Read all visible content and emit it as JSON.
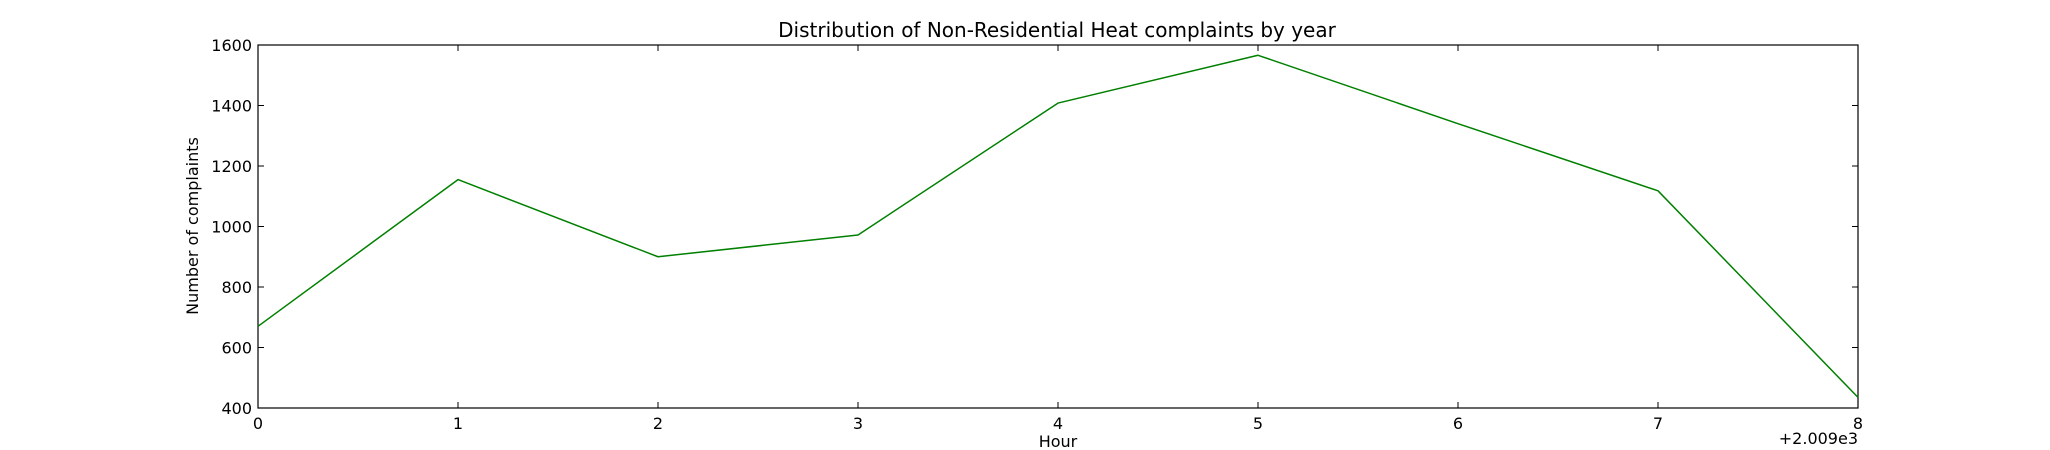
{
  "chart_data": {
    "type": "line",
    "title": "Distribution of  Non-Residential Heat complaints by year",
    "xlabel": "Hour",
    "ylabel": "Number of complaints",
    "x_offset_label": "+2.009e3",
    "xlim": [
      0,
      8
    ],
    "ylim": [
      400,
      1600
    ],
    "xticks": [
      0,
      1,
      2,
      3,
      4,
      5,
      6,
      7,
      8
    ],
    "yticks": [
      400,
      600,
      800,
      1000,
      1200,
      1400,
      1600
    ],
    "grid": false,
    "series": [
      {
        "color": "#008000",
        "x": [
          0,
          1,
          2,
          3,
          4,
          5,
          6,
          7,
          8
        ],
        "y": [
          670,
          1155,
          900,
          972,
          1408,
          1566,
          1340,
          1118,
          435
        ]
      }
    ]
  }
}
